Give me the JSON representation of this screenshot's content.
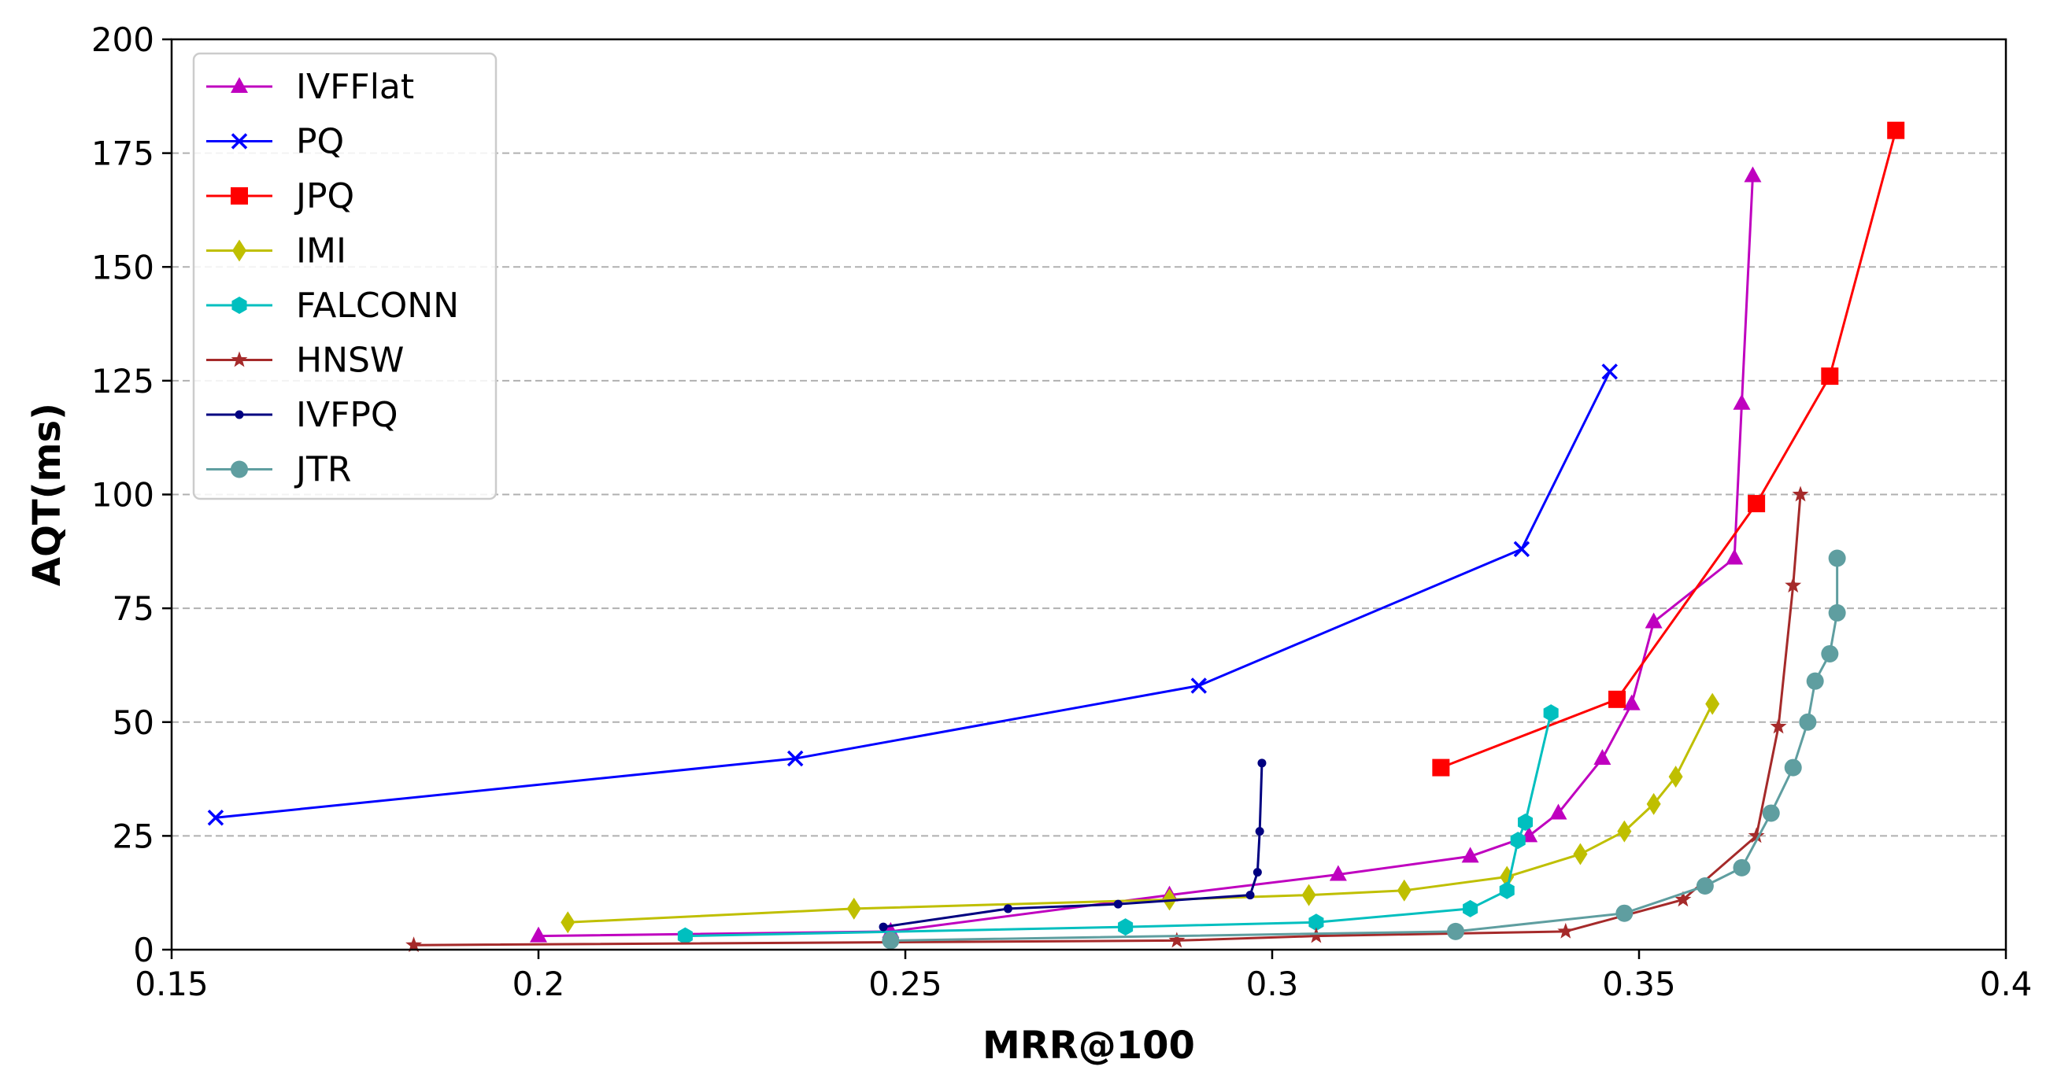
{
  "chart_data": {
    "type": "line",
    "xlabel": "MRR@100",
    "ylabel": "AQT(ms)",
    "xlim": [
      0.15,
      0.4
    ],
    "ylim": [
      0,
      200
    ],
    "xticks": [
      0.15,
      0.2,
      0.25,
      0.3,
      0.35,
      0.4
    ],
    "xtick_labels": [
      "0.15",
      "0.2",
      "0.25",
      "0.3",
      "0.35",
      "0.4"
    ],
    "yticks": [
      0,
      25,
      50,
      75,
      100,
      125,
      150,
      175,
      200
    ],
    "ytick_labels": [
      "0",
      "25",
      "50",
      "75",
      "100",
      "125",
      "150",
      "175",
      "200"
    ],
    "grid": "horizontal dashed",
    "legend_position": "top-left",
    "series": [
      {
        "name": "IVFFlat",
        "color": "#bf00bf",
        "marker": "triangle",
        "x": [
          0.2,
          0.248,
          0.286,
          0.309,
          0.327,
          0.335,
          0.339,
          0.345,
          0.349,
          0.352,
          0.363,
          0.364,
          0.3655
        ],
        "y": [
          3,
          4,
          12,
          16.5,
          20.5,
          25,
          30,
          42,
          54,
          72,
          86,
          120,
          170
        ]
      },
      {
        "name": "PQ",
        "color": "#0000ff",
        "marker": "x",
        "x": [
          0.156,
          0.235,
          0.29,
          0.334,
          0.346
        ],
        "y": [
          29,
          42,
          58,
          88,
          127
        ]
      },
      {
        "name": "JPQ",
        "color": "#ff0000",
        "marker": "square",
        "x": [
          0.323,
          0.347,
          0.366,
          0.376,
          0.385
        ],
        "y": [
          40,
          55,
          98,
          126,
          180
        ]
      },
      {
        "name": "IMI",
        "color": "#bfbf00",
        "marker": "diamond",
        "x": [
          0.204,
          0.243,
          0.286,
          0.305,
          0.318,
          0.332,
          0.342,
          0.348,
          0.352,
          0.355,
          0.36
        ],
        "y": [
          6,
          9,
          11,
          12,
          13,
          16,
          21,
          26,
          32,
          38,
          54
        ]
      },
      {
        "name": "FALCONN",
        "color": "#00bfbf",
        "marker": "hexagon",
        "x": [
          0.22,
          0.28,
          0.306,
          0.327,
          0.332,
          0.3335,
          0.3345,
          0.338
        ],
        "y": [
          3,
          5,
          6,
          9,
          13,
          24,
          28,
          52
        ]
      },
      {
        "name": "HNSW",
        "color": "#a52a2a",
        "marker": "star",
        "x": [
          0.183,
          0.287,
          0.306,
          0.34,
          0.356,
          0.366,
          0.369,
          0.371,
          0.372
        ],
        "y": [
          1,
          2,
          3,
          4,
          11,
          25,
          49,
          80,
          100
        ]
      },
      {
        "name": "IVFPQ",
        "color": "#000080",
        "marker": "dot",
        "x": [
          0.247,
          0.264,
          0.279,
          0.297,
          0.298,
          0.2983,
          0.2986
        ],
        "y": [
          5,
          9,
          10,
          12,
          17,
          26,
          41
        ]
      },
      {
        "name": "JTR",
        "color": "#5f9ea0",
        "marker": "circle",
        "x": [
          0.248,
          0.325,
          0.348,
          0.359,
          0.364,
          0.368,
          0.371,
          0.373,
          0.374,
          0.376,
          0.377,
          0.377
        ],
        "y": [
          2,
          4,
          8,
          14,
          18,
          30,
          40,
          50,
          59,
          65,
          74,
          86
        ]
      }
    ]
  }
}
